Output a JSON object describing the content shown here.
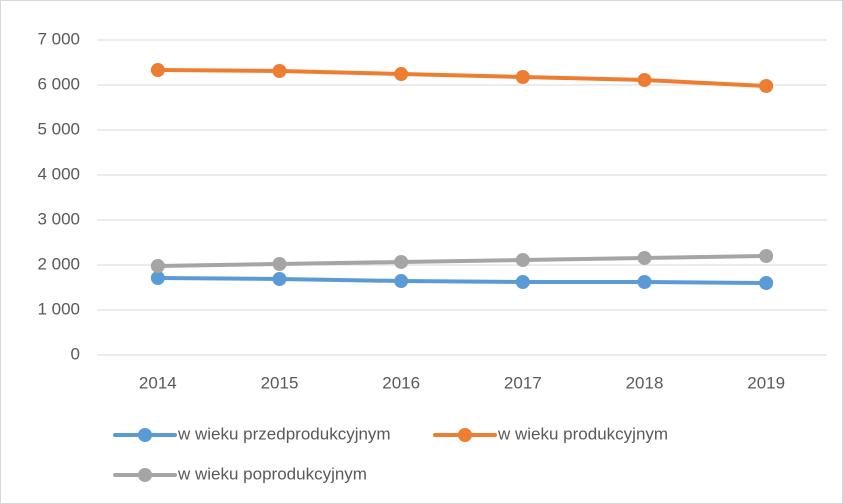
{
  "chart_data": {
    "type": "line",
    "categories": [
      "2014",
      "2015",
      "2016",
      "2017",
      "2018",
      "2019"
    ],
    "series": [
      {
        "name": "w wieku przedprodukcyjnym",
        "color": "#5b9bd5",
        "values": [
          1711,
          1689,
          1644,
          1622,
          1622,
          1600
        ]
      },
      {
        "name": "w wieku produkcyjnym",
        "color": "#ed7d31",
        "values": [
          6333,
          6311,
          6244,
          6178,
          6111,
          5978
        ]
      },
      {
        "name": "w wieku poprodukcyjnym",
        "color": "#a5a5a5",
        "values": [
          1978,
          2022,
          2067,
          2111,
          2156,
          2200
        ]
      }
    ],
    "ylim": [
      0,
      7000
    ],
    "yticks": [
      0,
      {
        "value": 1000,
        "label": "1 000"
      },
      {
        "value": 2000,
        "label": "2 000"
      },
      {
        "value": 3000,
        "label": "3 000"
      },
      {
        "value": 4000,
        "label": "4 000"
      },
      {
        "value": 5000,
        "label": "5 000"
      },
      {
        "value": 6000,
        "label": "6 000"
      },
      {
        "value": 7000,
        "label": "7 000"
      }
    ],
    "grid": true,
    "legend": "bottom"
  }
}
